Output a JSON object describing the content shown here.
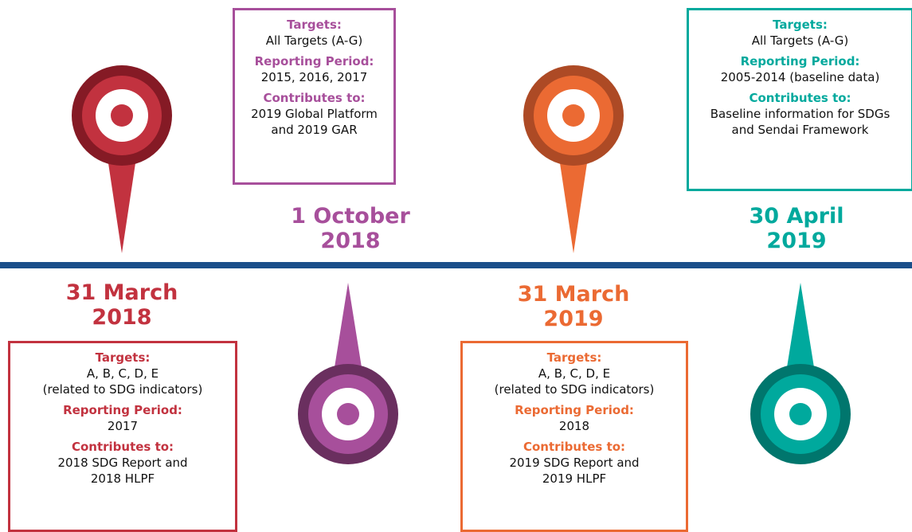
{
  "milestones": [
    {
      "date": [
        "31 March",
        "2018"
      ],
      "targets_label": "Targets:",
      "targets": [
        "A, B, C, D, E",
        "(related to SDG indicators)"
      ],
      "period_label": "Reporting Period:",
      "period": [
        "2017"
      ],
      "contributes_label": "Contributes to:",
      "contributes": [
        "2018 SDG Report and",
        "2018 HLPF"
      ]
    },
    {
      "date": [
        "1 October",
        "2018"
      ],
      "targets_label": "Targets:",
      "targets": [
        "All Targets (A-G)"
      ],
      "period_label": "Reporting Period:",
      "period": [
        "2015, 2016, 2017"
      ],
      "contributes_label": "Contributes to:",
      "contributes": [
        "2019 Global Platform",
        "and 2019 GAR"
      ]
    },
    {
      "date": [
        "31 March",
        "2019"
      ],
      "targets_label": "Targets:",
      "targets": [
        "A, B, C, D, E",
        "(related to SDG indicators)"
      ],
      "period_label": "Reporting Period:",
      "period": [
        "2018"
      ],
      "contributes_label": "Contributes to:",
      "contributes": [
        "2019 SDG Report and",
        "2019 HLPF"
      ]
    },
    {
      "date": [
        "30 April",
        "2019"
      ],
      "targets_label": "Targets:",
      "targets": [
        "All Targets (A-G)"
      ],
      "period_label": "Reporting Period:",
      "period": [
        "2005-2014 (baseline data)"
      ],
      "contributes_label": "Contributes to:",
      "contributes": [
        "Baseline information for SDGs",
        "and Sendai Framework"
      ]
    }
  ]
}
